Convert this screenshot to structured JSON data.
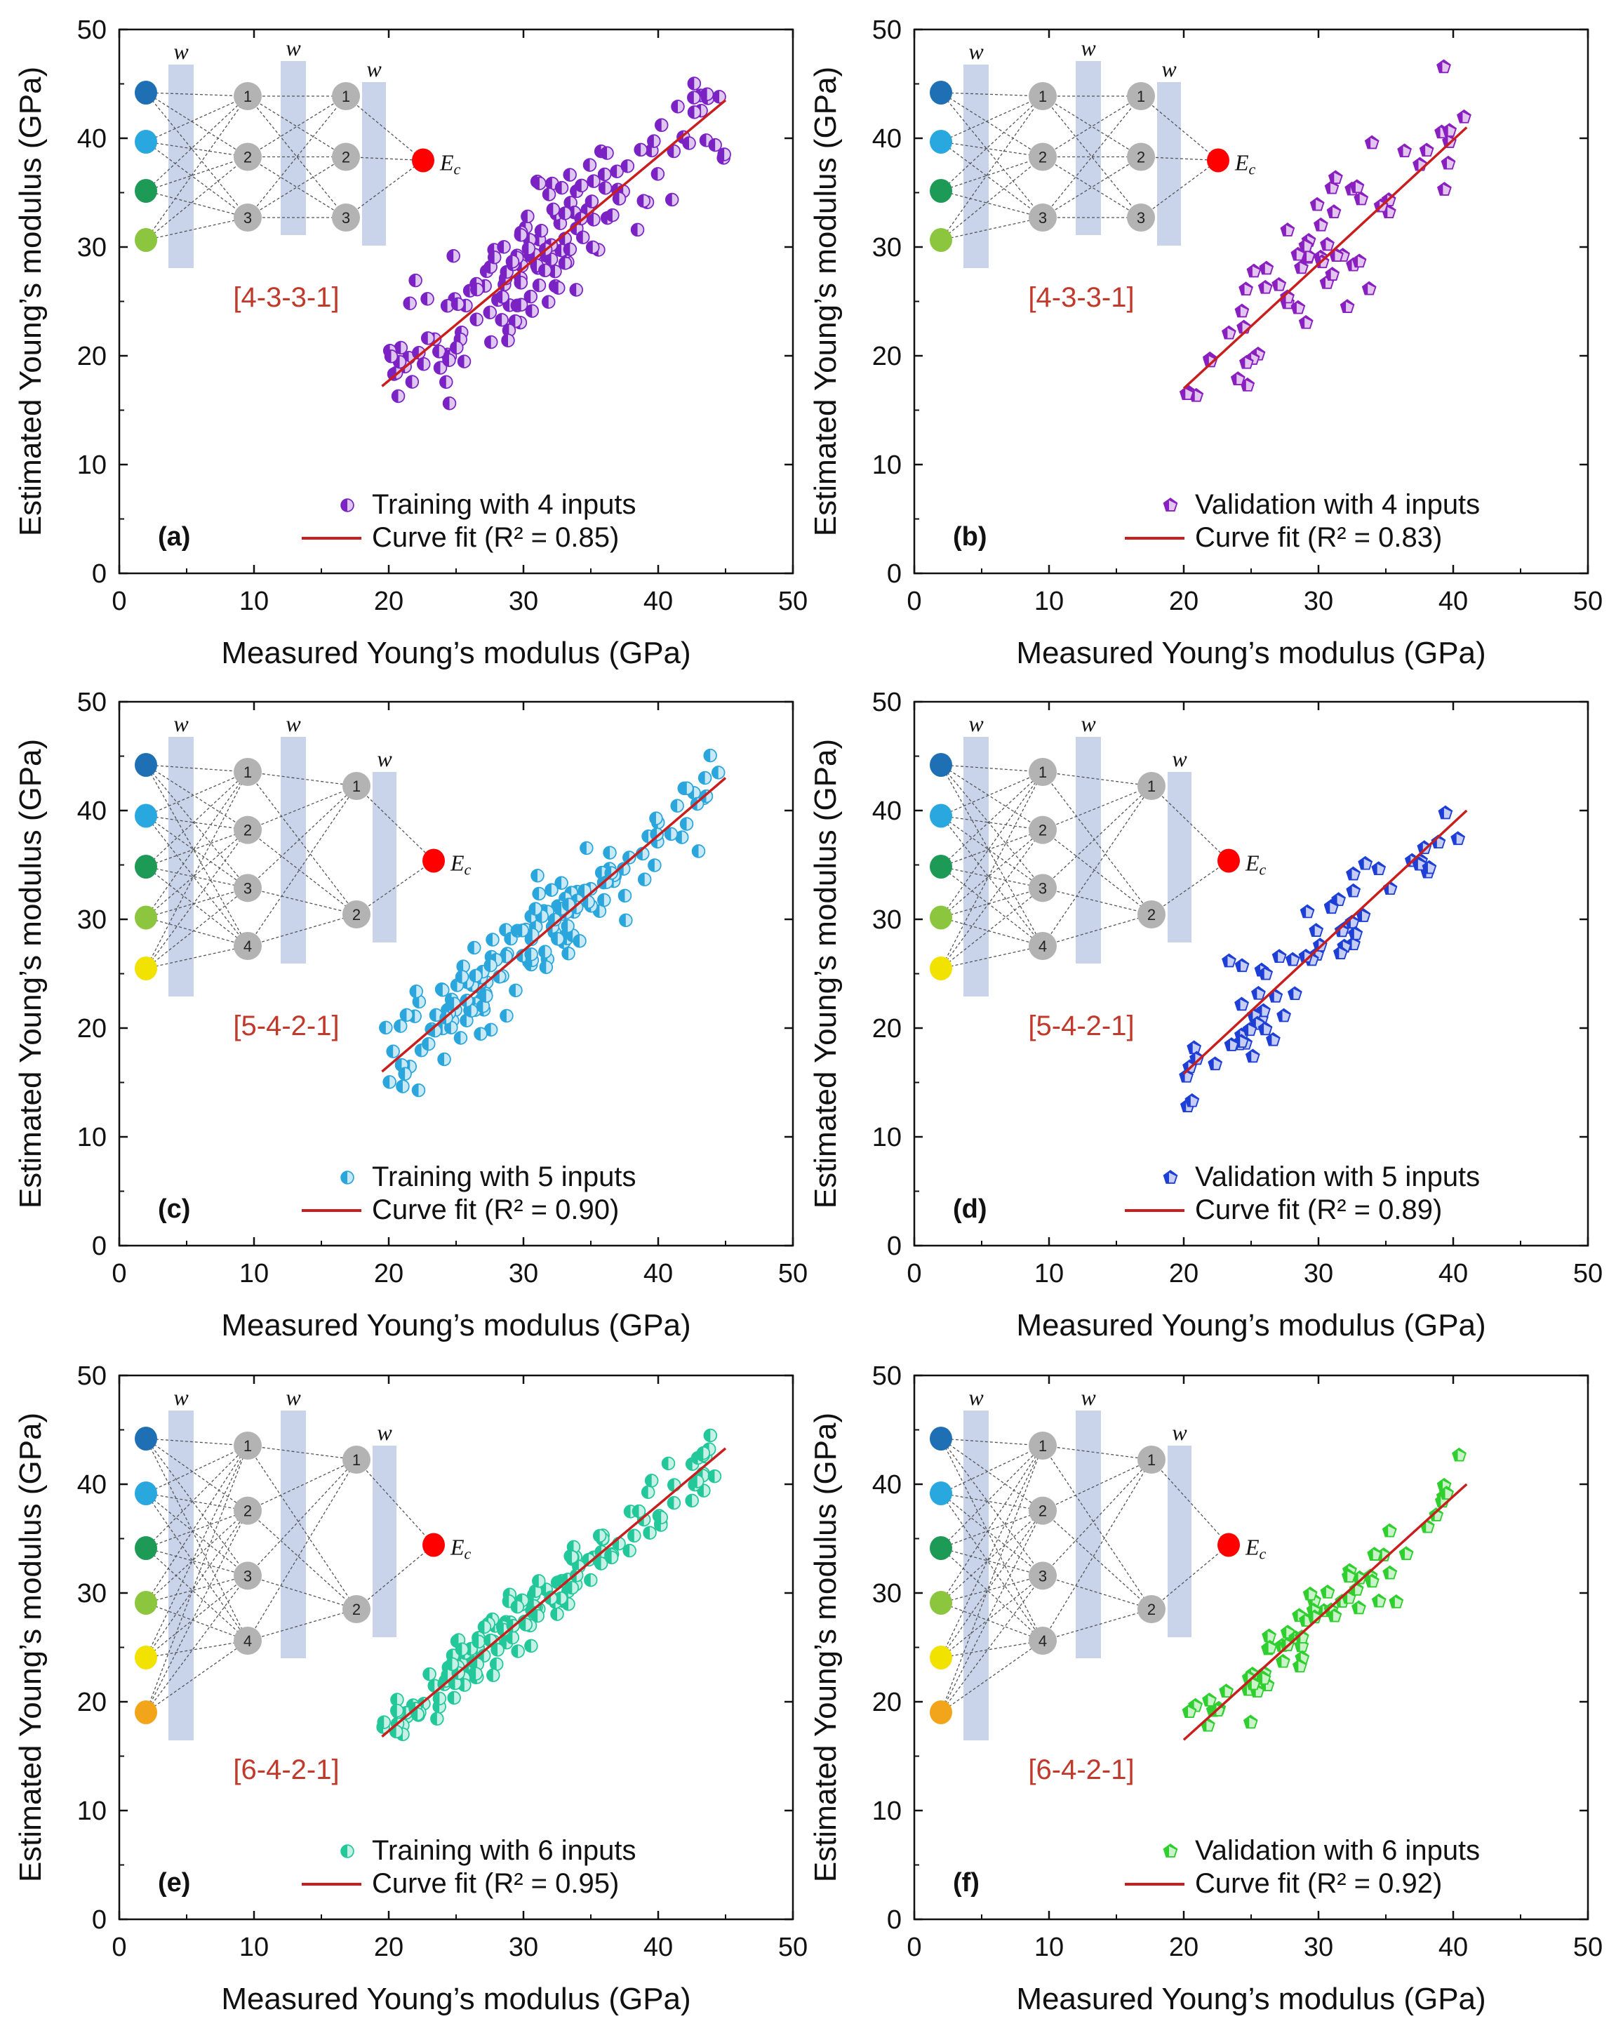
{
  "figure": {
    "panels": [
      {
        "tag": "(a)",
        "arch": "[4-3-3-1]",
        "legend_points": "Training with 4 inputs",
        "legend_fit": "Curve fit (R² = 0.85)",
        "marker_color": "#7b22c4",
        "marker": "circle",
        "inputs": 4,
        "layers": [
          3,
          3
        ],
        "input_colors": [
          "#1f6fb5",
          "#29a8e0",
          "#1d9a55",
          "#8cc63e"
        ]
      },
      {
        "tag": "(b)",
        "arch": "[4-3-3-1]",
        "legend_points": "Validation with 4 inputs",
        "legend_fit": "Curve fit (R² = 0.83)",
        "marker_color": "#8a1fc0",
        "marker": "pentagon",
        "inputs": 4,
        "layers": [
          3,
          3
        ],
        "input_colors": [
          "#1f6fb5",
          "#29a8e0",
          "#1d9a55",
          "#8cc63e"
        ]
      },
      {
        "tag": "(c)",
        "arch": "[5-4-2-1]",
        "legend_points": "Training with 5 inputs",
        "legend_fit": "Curve fit (R² = 0.90)",
        "marker_color": "#2aa6dc",
        "marker": "circle",
        "inputs": 5,
        "layers": [
          4,
          2
        ],
        "input_colors": [
          "#1f6fb5",
          "#29a8e0",
          "#1d9a55",
          "#8cc63e",
          "#f2e200"
        ]
      },
      {
        "tag": "(d)",
        "arch": "[5-4-2-1]",
        "legend_points": "Validation with 5 inputs",
        "legend_fit": "Curve fit (R² = 0.89)",
        "marker_color": "#1e3fd6",
        "marker": "pentagon",
        "inputs": 5,
        "layers": [
          4,
          2
        ],
        "input_colors": [
          "#1f6fb5",
          "#29a8e0",
          "#1d9a55",
          "#8cc63e",
          "#f2e200"
        ]
      },
      {
        "tag": "(e)",
        "arch": "[6-4-2-1]",
        "legend_points": "Training with 6 inputs",
        "legend_fit": "Curve fit (R² = 0.95)",
        "marker_color": "#22c79a",
        "marker": "circle",
        "inputs": 6,
        "layers": [
          4,
          2
        ],
        "input_colors": [
          "#1f6fb5",
          "#29a8e0",
          "#1d9a55",
          "#8cc63e",
          "#f2e200",
          "#f2a51a"
        ]
      },
      {
        "tag": "(f)",
        "arch": "[6-4-2-1]",
        "legend_points": "Validation with 6 inputs",
        "legend_fit": "Curve fit (R² = 0.92)",
        "marker_color": "#2fcf2f",
        "marker": "pentagon",
        "inputs": 6,
        "layers": [
          4,
          2
        ],
        "input_colors": [
          "#1f6fb5",
          "#29a8e0",
          "#1d9a55",
          "#8cc63e",
          "#f2e200",
          "#f2a51a"
        ]
      }
    ],
    "weight_symbol": "w",
    "output_symbol": "E",
    "output_subscript": "c",
    "fit_color": "#c81e1e",
    "output_color": "#ff0000",
    "node_color": "#b3b3b3",
    "band_color": "#c9d3ea"
  },
  "chart_data": [
    {
      "type": "scatter",
      "panel": "a",
      "title": "",
      "xlabel": "Measured Young’s modulus (GPa)",
      "ylabel": "Estimated Young’s modulus (GPa)",
      "xlim": [
        0,
        50
      ],
      "ylim": [
        0,
        50
      ],
      "xticks": [
        "0",
        "10",
        "20",
        "30",
        "40",
        "50"
      ],
      "yticks": [
        "0",
        "10",
        "20",
        "30",
        "40",
        "50"
      ],
      "series": [
        {
          "name": "Training with 4 inputs",
          "n": 160,
          "x_range": [
            19.5,
            45
          ],
          "noise": 3.0,
          "seed": 11
        }
      ],
      "fit": {
        "name": "Curve fit (R² = 0.85)",
        "x": [
          19.5,
          45
        ],
        "y": [
          17.2,
          43.5
        ]
      }
    },
    {
      "type": "scatter",
      "panel": "b",
      "title": "",
      "xlabel": "Measured Young’s modulus (GPa)",
      "ylabel": "Estimated Young’s modulus (GPa)",
      "xlim": [
        0,
        50
      ],
      "ylim": [
        0,
        50
      ],
      "xticks": [
        "0",
        "10",
        "20",
        "30",
        "40",
        "50"
      ],
      "yticks": [
        "0",
        "10",
        "20",
        "30",
        "40",
        "50"
      ],
      "series": [
        {
          "name": "Validation with 4 inputs",
          "n": 62,
          "x_range": [
            20,
            41
          ],
          "noise": 3.0,
          "seed": 23
        }
      ],
      "fit": {
        "name": "Curve fit (R² = 0.83)",
        "x": [
          20,
          41
        ],
        "y": [
          17,
          41
        ]
      }
    },
    {
      "type": "scatter",
      "panel": "c",
      "title": "",
      "xlabel": "Measured Young’s modulus (GPa)",
      "ylabel": "Estimated Young’s modulus (GPa)",
      "xlim": [
        0,
        50
      ],
      "ylim": [
        0,
        50
      ],
      "xticks": [
        "0",
        "10",
        "20",
        "30",
        "40",
        "50"
      ],
      "yticks": [
        "0",
        "10",
        "20",
        "30",
        "40",
        "50"
      ],
      "series": [
        {
          "name": "Training with 5 inputs",
          "n": 160,
          "x_range": [
            19.5,
            45
          ],
          "noise": 2.2,
          "seed": 37
        }
      ],
      "fit": {
        "name": "Curve fit (R² = 0.90)",
        "x": [
          19.5,
          45
        ],
        "y": [
          16,
          43
        ]
      }
    },
    {
      "type": "scatter",
      "panel": "d",
      "title": "",
      "xlabel": "Measured Young’s modulus (GPa)",
      "ylabel": "Estimated Young’s modulus (GPa)",
      "xlim": [
        0,
        50
      ],
      "ylim": [
        0,
        50
      ],
      "xticks": [
        "0",
        "10",
        "20",
        "30",
        "40",
        "50"
      ],
      "yticks": [
        "0",
        "10",
        "20",
        "30",
        "40",
        "50"
      ],
      "series": [
        {
          "name": "Validation with 5 inputs",
          "n": 62,
          "x_range": [
            20,
            41
          ],
          "noise": 2.2,
          "seed": 51
        }
      ],
      "fit": {
        "name": "Curve fit (R² = 0.89)",
        "x": [
          20,
          41
        ],
        "y": [
          15.8,
          40
        ]
      }
    },
    {
      "type": "scatter",
      "panel": "e",
      "title": "",
      "xlabel": "Measured Young’s modulus (GPa)",
      "ylabel": "Estimated Young’s modulus (GPa)",
      "xlim": [
        0,
        50
      ],
      "ylim": [
        0,
        50
      ],
      "xticks": [
        "0",
        "10",
        "20",
        "30",
        "40",
        "50"
      ],
      "yticks": [
        "0",
        "10",
        "20",
        "30",
        "40",
        "50"
      ],
      "series": [
        {
          "name": "Training with 6 inputs",
          "n": 160,
          "x_range": [
            19.5,
            45
          ],
          "noise": 1.3,
          "seed": 67
        }
      ],
      "fit": {
        "name": "Curve fit (R² = 0.95)",
        "x": [
          19.5,
          45
        ],
        "y": [
          16.8,
          43.3
        ]
      }
    },
    {
      "type": "scatter",
      "panel": "f",
      "title": "",
      "xlabel": "Measured Young’s modulus (GPa)",
      "ylabel": "Estimated Young’s modulus (GPa)",
      "xlim": [
        0,
        50
      ],
      "ylim": [
        0,
        50
      ],
      "xticks": [
        "0",
        "10",
        "20",
        "30",
        "40",
        "50"
      ],
      "yticks": [
        "0",
        "10",
        "20",
        "30",
        "40",
        "50"
      ],
      "series": [
        {
          "name": "Validation with 6 inputs",
          "n": 62,
          "x_range": [
            20,
            41
          ],
          "noise": 1.6,
          "seed": 79
        }
      ],
      "fit": {
        "name": "Curve fit (R² = 0.92)",
        "x": [
          20,
          41
        ],
        "y": [
          16.5,
          40
        ]
      }
    }
  ]
}
